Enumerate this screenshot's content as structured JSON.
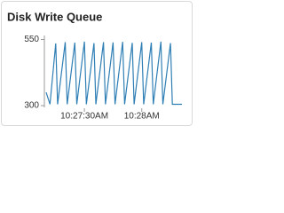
{
  "chart_data": {
    "type": "line",
    "title": "Disk Write Queue",
    "x": [
      "10:27:10AM",
      "10:27:12AM",
      "10:27:15AM",
      "10:27:16AM",
      "10:27:20AM",
      "10:27:21AM",
      "10:27:25AM",
      "10:27:26AM",
      "10:27:30AM",
      "10:27:31AM",
      "10:27:35AM",
      "10:27:36AM",
      "10:27:40AM",
      "10:27:41AM",
      "10:27:45AM",
      "10:27:46AM",
      "10:27:50AM",
      "10:27:51AM",
      "10:27:55AM",
      "10:27:56AM",
      "10:28:00AM",
      "10:28:01AM",
      "10:28:05AM",
      "10:28:06AM",
      "10:28:10AM",
      "10:28:11AM",
      "10:28:15AM",
      "10:28:16AM",
      "10:28:21AM"
    ],
    "series": [
      {
        "color": "#2f7fb5",
        "values": [
          350,
          305,
          535,
          305,
          540,
          305,
          538,
          305,
          542,
          305,
          536,
          305,
          540,
          305,
          539,
          305,
          541,
          305,
          537,
          305,
          540,
          305,
          538,
          305,
          542,
          305,
          536,
          305,
          305
        ]
      }
    ],
    "xlim": [
      "10:27:10AM",
      "10:28:21AM"
    ],
    "xticks": [
      "10:27:30AM",
      "10:28AM"
    ],
    "ylim": [
      300,
      565
    ],
    "yticks": [
      300,
      550
    ]
  }
}
